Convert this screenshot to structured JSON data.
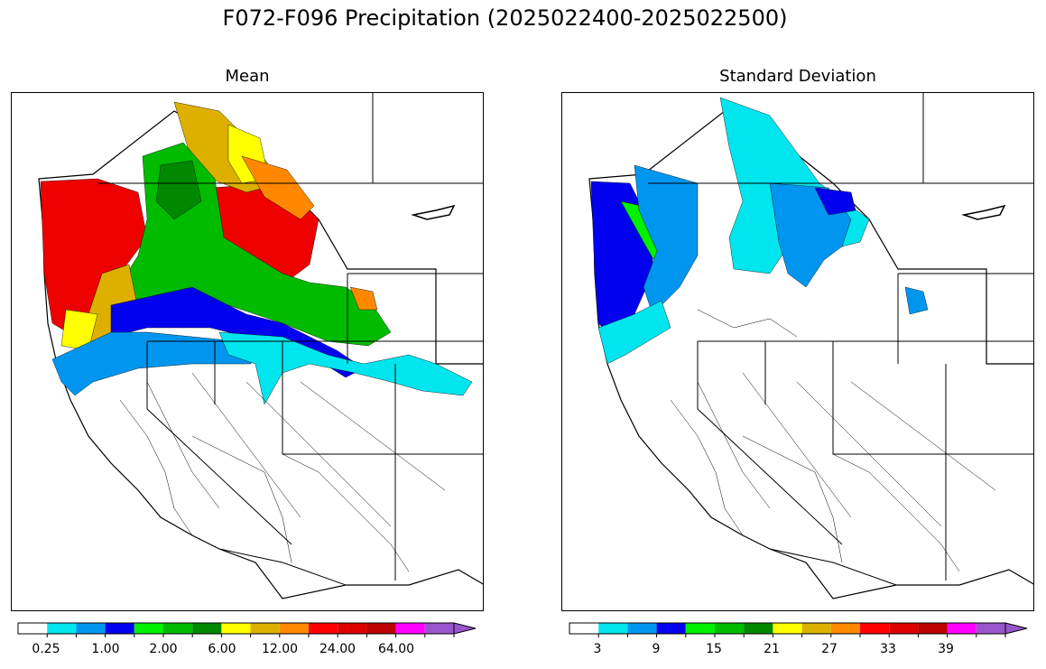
{
  "figure": {
    "title": "F072-F096 Precipitation (2025022400-2025022500)"
  },
  "panels": [
    {
      "subtitle": "Mean",
      "colorbar": {
        "colors": [
          "#ffffff",
          "#00e5ee",
          "#0096f0",
          "#0000ee",
          "#00f000",
          "#00bb00",
          "#008800",
          "#ffff00",
          "#ddb000",
          "#ff8800",
          "#ff0000",
          "#dd0000",
          "#bb0000",
          "#ff00ff",
          "#9955cc"
        ],
        "tick_labels": [
          "0.25",
          "1.00",
          "2.00",
          "6.00",
          "12.00",
          "24.00",
          "64.00"
        ],
        "extend": "max"
      }
    },
    {
      "subtitle": "Standard Deviation",
      "colorbar": {
        "colors": [
          "#ffffff",
          "#00e5ee",
          "#0096f0",
          "#0000ee",
          "#00f000",
          "#00bb00",
          "#008800",
          "#ffff00",
          "#ddb000",
          "#ff8800",
          "#ff0000",
          "#dd0000",
          "#bb0000",
          "#ff00ff",
          "#9955cc"
        ],
        "tick_labels": [
          "3",
          "9",
          "15",
          "21",
          "27",
          "33",
          "39"
        ],
        "extend": "max"
      }
    }
  ]
}
